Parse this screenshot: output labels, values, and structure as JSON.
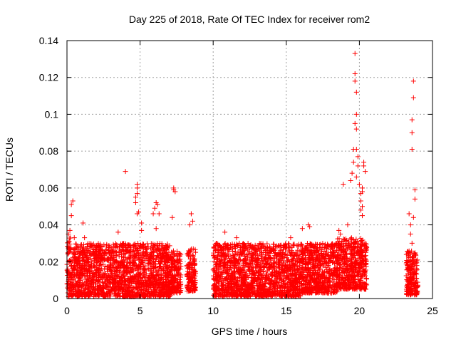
{
  "chart_data": {
    "type": "scatter",
    "title": "Day 225 of 2018, Rate Of TEC Index for receiver rom2",
    "xlabel": "GPS time / hours",
    "ylabel": "ROTI / TECUs",
    "xlim": [
      0,
      25
    ],
    "ylim": [
      0,
      0.14
    ],
    "x_ticks": [
      "0",
      "5",
      "10",
      "15",
      "20",
      "25"
    ],
    "y_ticks": [
      "0",
      "0.02",
      "0.04",
      "0.06",
      "0.08",
      "0.1",
      "0.12",
      "0.14"
    ],
    "grid": true,
    "marker": "plus",
    "color": "#ff0000",
    "points": [
      [
        0.1,
        0.035
      ],
      [
        0.2,
        0.037
      ],
      [
        0.3,
        0.045
      ],
      [
        0.3,
        0.051
      ],
      [
        0.4,
        0.053
      ],
      [
        0.5,
        0.033
      ],
      [
        1.1,
        0.041
      ],
      [
        1.2,
        0.033
      ],
      [
        3.5,
        0.036
      ],
      [
        4.0,
        0.069
      ],
      [
        4.7,
        0.052
      ],
      [
        4.7,
        0.055
      ],
      [
        4.8,
        0.057
      ],
      [
        4.8,
        0.06
      ],
      [
        4.8,
        0.062
      ],
      [
        4.8,
        0.046
      ],
      [
        4.9,
        0.047
      ],
      [
        5.1,
        0.037
      ],
      [
        5.1,
        0.041
      ],
      [
        5.9,
        0.046
      ],
      [
        6.0,
        0.049
      ],
      [
        6.1,
        0.052
      ],
      [
        6.2,
        0.051
      ],
      [
        6.3,
        0.046
      ],
      [
        6.1,
        0.038
      ],
      [
        7.3,
        0.06
      ],
      [
        7.3,
        0.059
      ],
      [
        7.4,
        0.058
      ],
      [
        7.2,
        0.044
      ],
      [
        8.5,
        0.046
      ],
      [
        8.6,
        0.042
      ],
      [
        8.4,
        0.04
      ],
      [
        10.8,
        0.036
      ],
      [
        11.6,
        0.033
      ],
      [
        15.3,
        0.033
      ],
      [
        16.1,
        0.038
      ],
      [
        16.5,
        0.04
      ],
      [
        16.6,
        0.039
      ],
      [
        18.6,
        0.037
      ],
      [
        18.7,
        0.035
      ],
      [
        18.9,
        0.062
      ],
      [
        19.2,
        0.04
      ],
      [
        19.4,
        0.064
      ],
      [
        19.5,
        0.068
      ],
      [
        19.6,
        0.074
      ],
      [
        19.6,
        0.081
      ],
      [
        19.7,
        0.118
      ],
      [
        19.7,
        0.122
      ],
      [
        19.7,
        0.133
      ],
      [
        19.8,
        0.1
      ],
      [
        19.7,
        0.095
      ],
      [
        19.8,
        0.092
      ],
      [
        19.8,
        0.081
      ],
      [
        19.9,
        0.077
      ],
      [
        19.9,
        0.072
      ],
      [
        19.8,
        0.066
      ],
      [
        20.0,
        0.062
      ],
      [
        20.1,
        0.057
      ],
      [
        20.1,
        0.053
      ],
      [
        20.2,
        0.05
      ],
      [
        20.1,
        0.048
      ],
      [
        20.2,
        0.045
      ],
      [
        20.3,
        0.074
      ],
      [
        20.3,
        0.072
      ],
      [
        20.4,
        0.069
      ],
      [
        20.2,
        0.06
      ],
      [
        20.2,
        0.058
      ],
      [
        19.8,
        0.112
      ],
      [
        23.4,
        0.046
      ],
      [
        23.5,
        0.035
      ],
      [
        23.6,
        0.03
      ],
      [
        23.6,
        0.081
      ],
      [
        23.6,
        0.09
      ],
      [
        23.6,
        0.097
      ],
      [
        23.7,
        0.109
      ],
      [
        23.7,
        0.118
      ],
      [
        23.8,
        0.054
      ],
      [
        23.8,
        0.059
      ],
      [
        23.7,
        0.044
      ],
      [
        23.5,
        0.04
      ]
    ],
    "dense_bands": [
      {
        "x": [
          0.0,
          0.3
        ],
        "y": [
          0.001,
          0.033
        ]
      },
      {
        "x": [
          0.3,
          7.1
        ],
        "y": [
          0.001,
          0.03
        ]
      },
      {
        "x": [
          7.1,
          7.8
        ],
        "y": [
          0.003,
          0.026
        ]
      },
      {
        "x": [
          8.2,
          8.8
        ],
        "y": [
          0.004,
          0.027
        ]
      },
      {
        "x": [
          10.0,
          16.0
        ],
        "y": [
          0.001,
          0.03
        ]
      },
      {
        "x": [
          16.0,
          18.5
        ],
        "y": [
          0.003,
          0.03
        ]
      },
      {
        "x": [
          18.5,
          20.5
        ],
        "y": [
          0.005,
          0.033
        ]
      },
      {
        "x": [
          23.2,
          24.0
        ],
        "y": [
          0.002,
          0.026
        ]
      }
    ]
  }
}
